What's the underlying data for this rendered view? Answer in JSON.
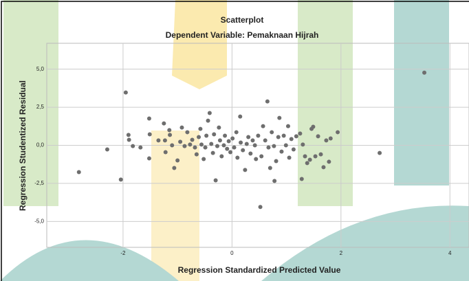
{
  "chart_data": {
    "type": "scatter",
    "title": "Scatterplot",
    "subtitle": "Dependent Variable: Pemaknaan Hijrah",
    "x_label": "Regression Standardized Predicted Value",
    "y_label": "Regression Studentized Residual",
    "color": "#6e6e6e",
    "grid": true,
    "xlim": [
      -3.4,
      4.35
    ],
    "ylim": [
      -6.7,
      6.7
    ],
    "xticks": [
      -2,
      0,
      2,
      4
    ],
    "yticks": [
      {
        "value": 5,
        "label": "5,0"
      },
      {
        "value": 2.5,
        "label": "2,5"
      },
      {
        "value": 0,
        "label": "0,0"
      },
      {
        "value": -2.5,
        "label": "-2,5"
      },
      {
        "value": -5,
        "label": "-5,0"
      }
    ],
    "x": [
      -2.81,
      -2.29,
      -2.04,
      -1.95,
      -1.9,
      -1.89,
      -1.82,
      -1.68,
      -1.52,
      -1.51,
      -1.52,
      -1.35,
      -1.25,
      -1.23,
      -1.22,
      -1.15,
      -1.14,
      -1.1,
      -1.06,
      -1.0,
      -0.95,
      -0.92,
      -0.87,
      -0.82,
      -0.77,
      -0.73,
      -0.68,
      -0.65,
      -0.61,
      -0.58,
      -0.56,
      -0.52,
      -0.49,
      -0.47,
      -0.44,
      -0.41,
      -0.38,
      -0.35,
      -0.33,
      -0.3,
      -0.27,
      -0.24,
      -0.22,
      -0.19,
      -0.15,
      -0.13,
      -0.09,
      -0.06,
      -0.03,
      0.01,
      0.04,
      0.08,
      0.1,
      0.15,
      0.16,
      0.2,
      0.24,
      0.27,
      0.3,
      0.34,
      0.38,
      0.42,
      0.44,
      0.48,
      0.52,
      0.54,
      0.57,
      0.61,
      0.65,
      0.67,
      0.7,
      0.73,
      0.77,
      0.78,
      0.81,
      0.85,
      0.87,
      0.91,
      0.95,
      0.99,
      1.03,
      1.05,
      1.09,
      1.13,
      1.18,
      1.25,
      1.28,
      1.3,
      1.34,
      1.38,
      1.43,
      1.46,
      1.49,
      1.53,
      1.58,
      1.63,
      1.68,
      1.73,
      1.78,
      1.81,
      1.94,
      2.71,
      3.53
    ],
    "y": [
      -1.76,
      -0.27,
      -2.25,
      3.47,
      0.68,
      0.36,
      -0.05,
      -0.14,
      1.76,
      0.72,
      -0.86,
      0.32,
      1.44,
      0.32,
      -0.45,
      1.0,
      0.68,
      0.0,
      -1.49,
      -0.99,
      0.23,
      1.17,
      -0.05,
      0.86,
      0.05,
      0.36,
      -0.14,
      -0.59,
      0.54,
      1.08,
      0.05,
      -0.9,
      -0.14,
      0.63,
      1.62,
      2.12,
      0.09,
      -0.5,
      0.72,
      -2.3,
      -0.05,
      1.17,
      0.32,
      -0.72,
      0.0,
      0.63,
      -0.23,
      0.27,
      -0.45,
      0.45,
      -0.14,
      0.86,
      -0.81,
      1.89,
      0.18,
      -0.32,
      -1.62,
      0.09,
      0.54,
      -0.54,
      0.32,
      0.0,
      -0.9,
      0.63,
      -4.05,
      -0.72,
      1.26,
      0.32,
      2.88,
      -0.14,
      -1.49,
      0.86,
      -0.05,
      -2.34,
      -1.04,
      0.54,
      1.8,
      -0.41,
      0.63,
      0.0,
      1.26,
      -0.81,
      0.41,
      -0.27,
      0.59,
      0.77,
      -2.21,
      0.05,
      -0.72,
      -1.17,
      -0.95,
      1.08,
      1.22,
      -0.72,
      0.59,
      -0.59,
      -1.44,
      0.32,
      -1.08,
      0.45,
      0.86,
      -0.5,
      4.77
    ]
  }
}
